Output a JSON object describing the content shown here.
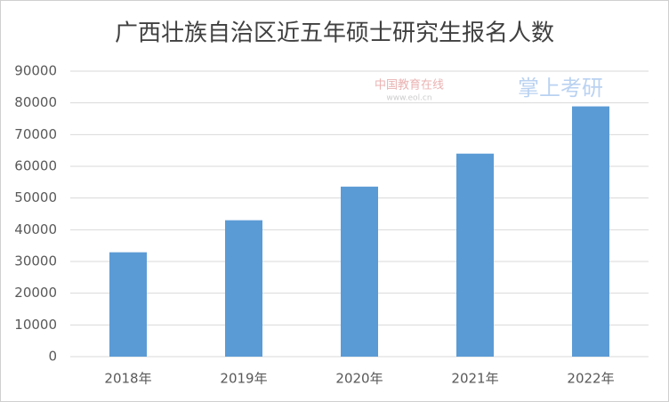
{
  "chart_data": {
    "type": "bar",
    "title": "广西壮族自治区近五年硕士研究生报名人数",
    "categories": [
      "2018年",
      "2019年",
      "2020年",
      "2021年",
      "2022年"
    ],
    "values": [
      32900,
      43000,
      53600,
      64000,
      78900
    ],
    "color": "#5b9bd5",
    "ylim": [
      0,
      90000
    ],
    "yticks": [
      0,
      10000,
      20000,
      30000,
      40000,
      50000,
      60000,
      70000,
      80000,
      90000
    ],
    "grid": true,
    "watermarks": [
      "中国教育在线",
      "www.eol.cn",
      "掌上考研"
    ]
  }
}
